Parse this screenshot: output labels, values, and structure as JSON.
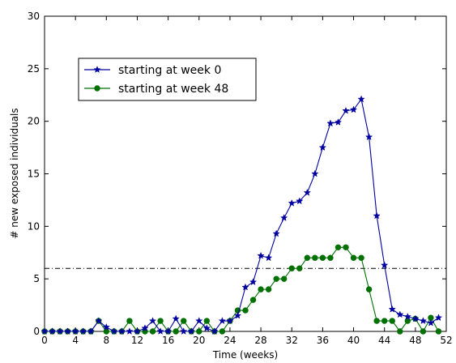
{
  "chart_data": {
    "type": "line",
    "xlabel": "Time (weeks)",
    "ylabel": "# new exposed individuals",
    "xlim": [
      0,
      52
    ],
    "ylim": [
      0,
      30
    ],
    "xticks": [
      0,
      4,
      8,
      12,
      16,
      20,
      24,
      28,
      32,
      36,
      40,
      44,
      48,
      52
    ],
    "yticks": [
      0,
      5,
      10,
      15,
      20,
      25,
      30
    ],
    "grid": false,
    "legend_position": "upper-left",
    "threshold": {
      "y": 6,
      "style": "dash-dot",
      "color": "#000000"
    },
    "series": [
      {
        "name": "starting at week 0",
        "color": "#0000a0",
        "marker": "star",
        "x": [
          0,
          1,
          2,
          3,
          4,
          5,
          6,
          7,
          8,
          9,
          10,
          11,
          12,
          13,
          14,
          15,
          16,
          17,
          18,
          19,
          20,
          21,
          22,
          23,
          24,
          25,
          26,
          27,
          28,
          29,
          30,
          31,
          32,
          33,
          34,
          35,
          36,
          37,
          38,
          39,
          40,
          41,
          42,
          43,
          44,
          45,
          46,
          47,
          48,
          49,
          50,
          51
        ],
        "y": [
          0,
          0,
          0,
          0,
          0,
          0,
          0,
          1,
          0.4,
          0,
          0,
          0,
          0,
          0.3,
          1,
          0,
          0,
          1.2,
          0,
          0,
          1,
          0.3,
          0,
          1,
          1,
          1.5,
          4.2,
          4.7,
          7.2,
          7,
          9.3,
          10.8,
          12.2,
          12.4,
          13.2,
          15,
          17.5,
          19.8,
          19.9,
          21,
          21.1,
          22.1,
          18.5,
          11,
          6.3,
          2.1,
          1.6,
          1.4,
          1.2,
          1,
          0.8,
          1.3
        ]
      },
      {
        "name": "starting at week 48",
        "color": "#007000",
        "marker": "circle",
        "x": [
          0,
          1,
          2,
          3,
          4,
          5,
          6,
          7,
          8,
          9,
          10,
          11,
          12,
          13,
          14,
          15,
          16,
          17,
          18,
          19,
          20,
          21,
          22,
          23,
          24,
          25,
          26,
          27,
          28,
          29,
          30,
          31,
          32,
          33,
          34,
          35,
          36,
          37,
          38,
          39,
          40,
          41,
          42,
          43,
          44,
          45,
          46,
          47,
          48,
          49,
          50,
          51
        ],
        "y": [
          0,
          0,
          0,
          0,
          0,
          0,
          0,
          1,
          0,
          0,
          0,
          1,
          0,
          0,
          0,
          1,
          0,
          0,
          1,
          0,
          0,
          1,
          0,
          0,
          1,
          2,
          2,
          3,
          4,
          4,
          5,
          5,
          6,
          6,
          7,
          7,
          7,
          7,
          8,
          8,
          7,
          7,
          4,
          1,
          1,
          1,
          0,
          1,
          1.2,
          0,
          1.3,
          0
        ]
      }
    ]
  }
}
